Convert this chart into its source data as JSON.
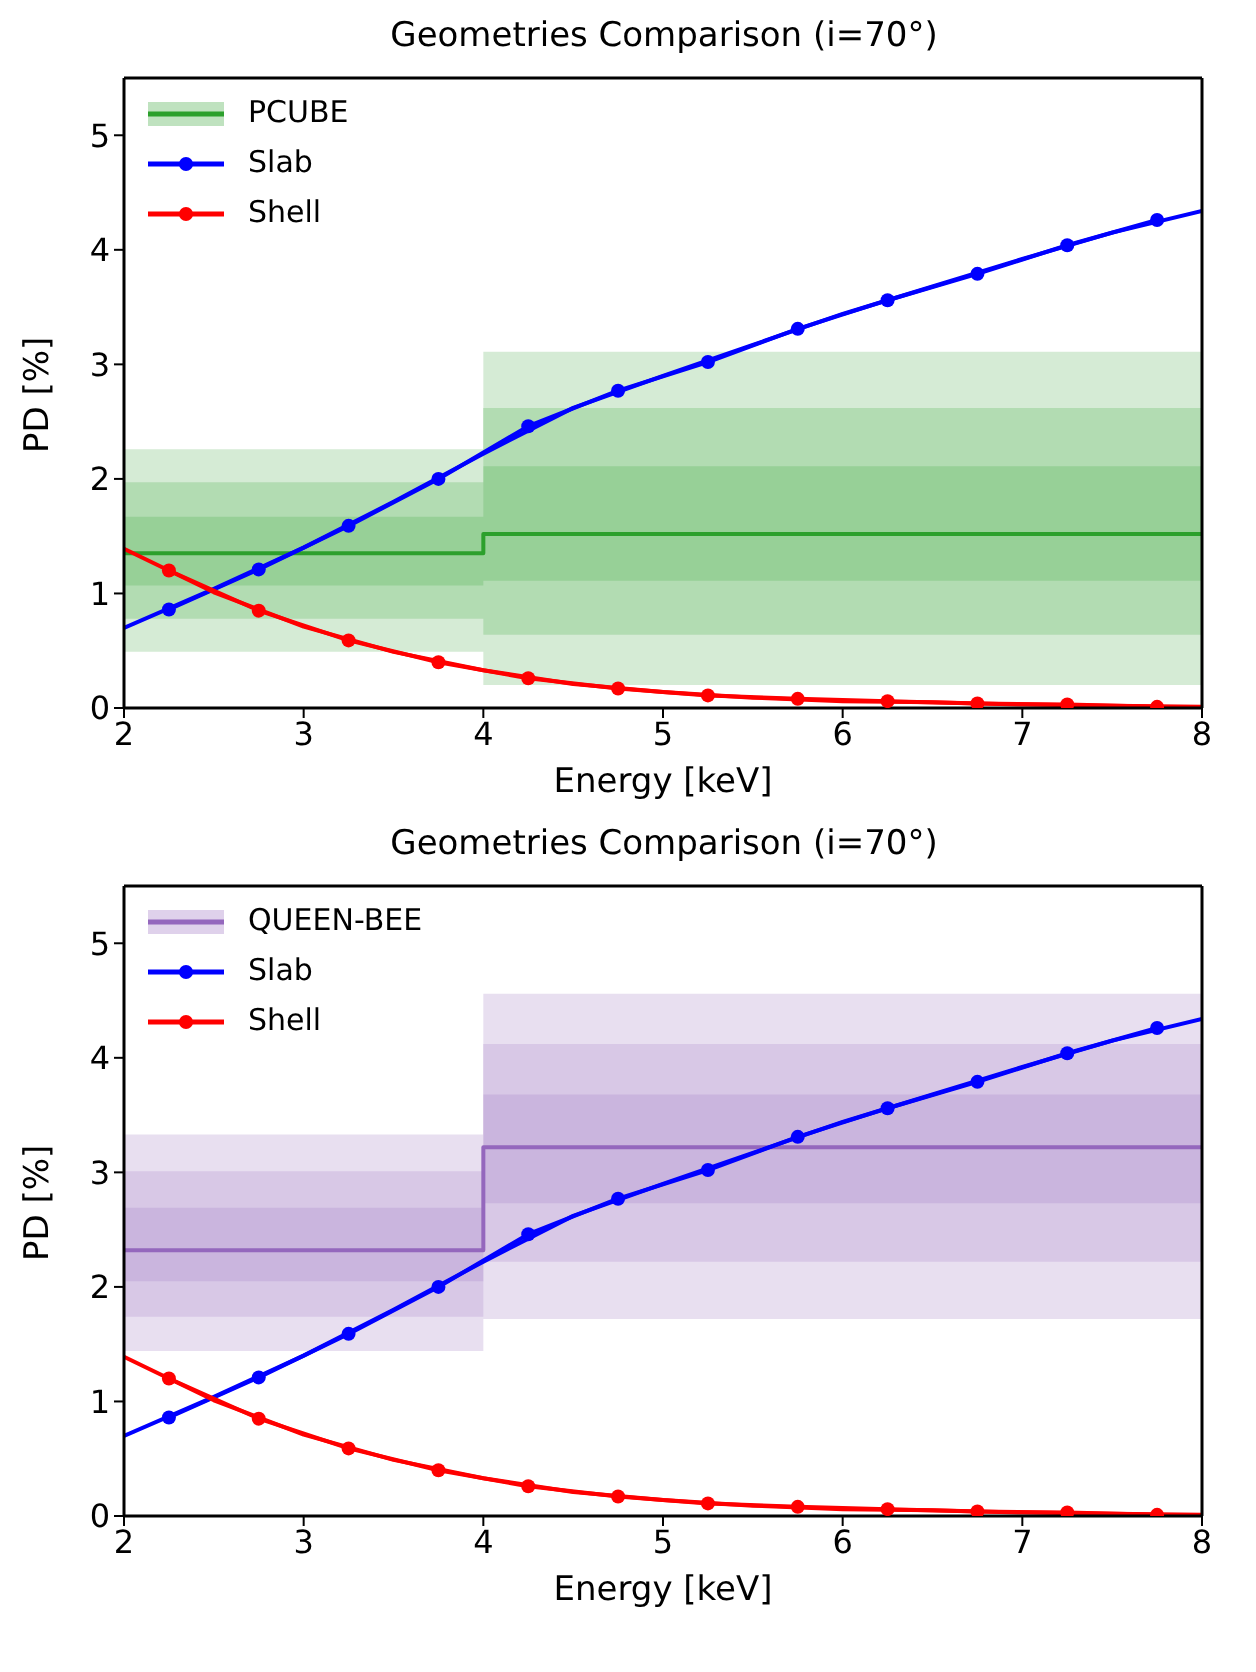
{
  "chart_data": [
    {
      "type": "line",
      "title": "Geometries Comparison (i=70°)",
      "xlabel": "Energy [keV]",
      "ylabel": "PD [%]",
      "xlim": [
        2,
        8
      ],
      "xticks": [
        2,
        3,
        4,
        5,
        6,
        7,
        8
      ],
      "ylim": [
        0,
        5.5
      ],
      "yticks": [
        0,
        1,
        2,
        3,
        4,
        5
      ],
      "legend": "top left",
      "grid": false,
      "series": [
        {
          "type": "step",
          "color": "#d5ebd5",
          "x": [
            2,
            4,
            8
          ],
          "values": [
            null,
            null,
            null
          ],
          "lower": [
            0.49,
            0.2,
            0.2
          ],
          "upper": [
            2.26,
            3.11,
            3.11
          ]
        },
        {
          "type": "step",
          "color": "#b2dcb2",
          "x": [
            2,
            4,
            8
          ],
          "values": [
            null,
            null,
            null
          ],
          "lower": [
            0.78,
            0.64,
            0.64
          ],
          "upper": [
            1.97,
            2.62,
            2.62
          ]
        },
        {
          "type": "step",
          "name": "PCUBE",
          "color": "#2ca02c",
          "marker": "none",
          "x": [
            2,
            4,
            8
          ],
          "values": [
            1.35,
            1.52,
            1.52
          ],
          "lower": [
            1.07,
            1.11,
            1.11
          ],
          "upper": [
            1.67,
            2.11,
            2.11
          ]
        },
        {
          "color": "#0000ff",
          "marker": "none",
          "x": [
            2,
            2.5,
            3,
            3.5,
            4,
            4.5,
            5,
            5.5,
            6,
            6.5,
            7,
            7.5,
            8
          ],
          "values": [
            0.7,
            1.04,
            1.4,
            1.8,
            2.22,
            2.62,
            2.9,
            3.17,
            3.44,
            3.68,
            3.92,
            4.15,
            4.34
          ]
        },
        {
          "name": "Slab",
          "color": "#0000ff",
          "marker": "circle",
          "x": [
            2.25,
            2.75,
            3.25,
            3.75,
            4.25,
            4.75,
            5.25,
            5.75,
            6.25,
            6.75,
            7.25,
            7.75
          ],
          "values": [
            0.86,
            1.21,
            1.59,
            2.0,
            2.46,
            2.77,
            3.02,
            3.31,
            3.56,
            3.79,
            4.04,
            4.26
          ]
        },
        {
          "color": "#ff0000",
          "marker": "none",
          "x": [
            2,
            2.5,
            3,
            3.5,
            4,
            4.5,
            5,
            5.5,
            6,
            6.5,
            7,
            7.5,
            8
          ],
          "values": [
            1.39,
            1.01,
            0.71,
            0.49,
            0.33,
            0.21,
            0.14,
            0.09,
            0.06,
            0.05,
            0.03,
            0.02,
            0.01
          ]
        },
        {
          "name": "Shell",
          "color": "#ff0000",
          "marker": "circle",
          "x": [
            2.25,
            2.75,
            3.25,
            3.75,
            4.25,
            4.75,
            5.25,
            5.75,
            6.25,
            6.75,
            7.25,
            7.75
          ],
          "values": [
            1.2,
            0.85,
            0.59,
            0.4,
            0.26,
            0.17,
            0.11,
            0.08,
            0.06,
            0.04,
            0.03,
            0.01
          ]
        }
      ]
    },
    {
      "type": "line",
      "title": "Geometries Comparison (i=70°)",
      "xlabel": "Energy [keV]",
      "ylabel": "PD [%]",
      "xlim": [
        2,
        8
      ],
      "xticks": [
        2,
        3,
        4,
        5,
        6,
        7,
        8
      ],
      "ylim": [
        0,
        5.5
      ],
      "yticks": [
        0,
        1,
        2,
        3,
        4,
        5
      ],
      "legend": "top left",
      "grid": false,
      "series": [
        {
          "type": "step",
          "color": "#e8dff0",
          "x": [
            2,
            4,
            8
          ],
          "values": [
            null,
            null,
            null
          ],
          "lower": [
            1.44,
            1.72,
            1.72
          ],
          "upper": [
            3.33,
            4.56,
            4.56
          ]
        },
        {
          "type": "step",
          "color": "#d8c8e6",
          "x": [
            2,
            4,
            8
          ],
          "values": [
            null,
            null,
            null
          ],
          "lower": [
            1.74,
            2.22,
            2.22
          ],
          "upper": [
            3.01,
            4.12,
            4.12
          ]
        },
        {
          "type": "step",
          "name": "QUEEN-BEE",
          "color": "#9467bd",
          "marker": "none",
          "x": [
            2,
            4,
            8
          ],
          "values": [
            2.32,
            3.22,
            3.22
          ],
          "lower": [
            2.05,
            2.73,
            2.73
          ],
          "upper": [
            2.69,
            3.68,
            3.68
          ]
        },
        {
          "color": "#0000ff",
          "marker": "none",
          "x": [
            2,
            2.5,
            3,
            3.5,
            4,
            4.5,
            5,
            5.5,
            6,
            6.5,
            7,
            7.5,
            8
          ],
          "values": [
            0.7,
            1.04,
            1.4,
            1.8,
            2.22,
            2.62,
            2.9,
            3.17,
            3.44,
            3.68,
            3.92,
            4.15,
            4.34
          ]
        },
        {
          "name": "Slab",
          "color": "#0000ff",
          "marker": "circle",
          "x": [
            2.25,
            2.75,
            3.25,
            3.75,
            4.25,
            4.75,
            5.25,
            5.75,
            6.25,
            6.75,
            7.25,
            7.75
          ],
          "values": [
            0.86,
            1.21,
            1.59,
            2.0,
            2.46,
            2.77,
            3.02,
            3.31,
            3.56,
            3.79,
            4.04,
            4.26
          ]
        },
        {
          "color": "#ff0000",
          "marker": "none",
          "x": [
            2,
            2.5,
            3,
            3.5,
            4,
            4.5,
            5,
            5.5,
            6,
            6.5,
            7,
            7.5,
            8
          ],
          "values": [
            1.39,
            1.01,
            0.71,
            0.49,
            0.33,
            0.21,
            0.14,
            0.09,
            0.06,
            0.05,
            0.03,
            0.02,
            0.01
          ]
        },
        {
          "name": "Shell",
          "color": "#ff0000",
          "marker": "circle",
          "x": [
            2.25,
            2.75,
            3.25,
            3.75,
            4.25,
            4.75,
            5.25,
            5.75,
            6.25,
            6.75,
            7.25,
            7.75
          ],
          "values": [
            1.2,
            0.85,
            0.59,
            0.4,
            0.26,
            0.17,
            0.11,
            0.08,
            0.06,
            0.04,
            0.03,
            0.01
          ]
        }
      ]
    }
  ]
}
